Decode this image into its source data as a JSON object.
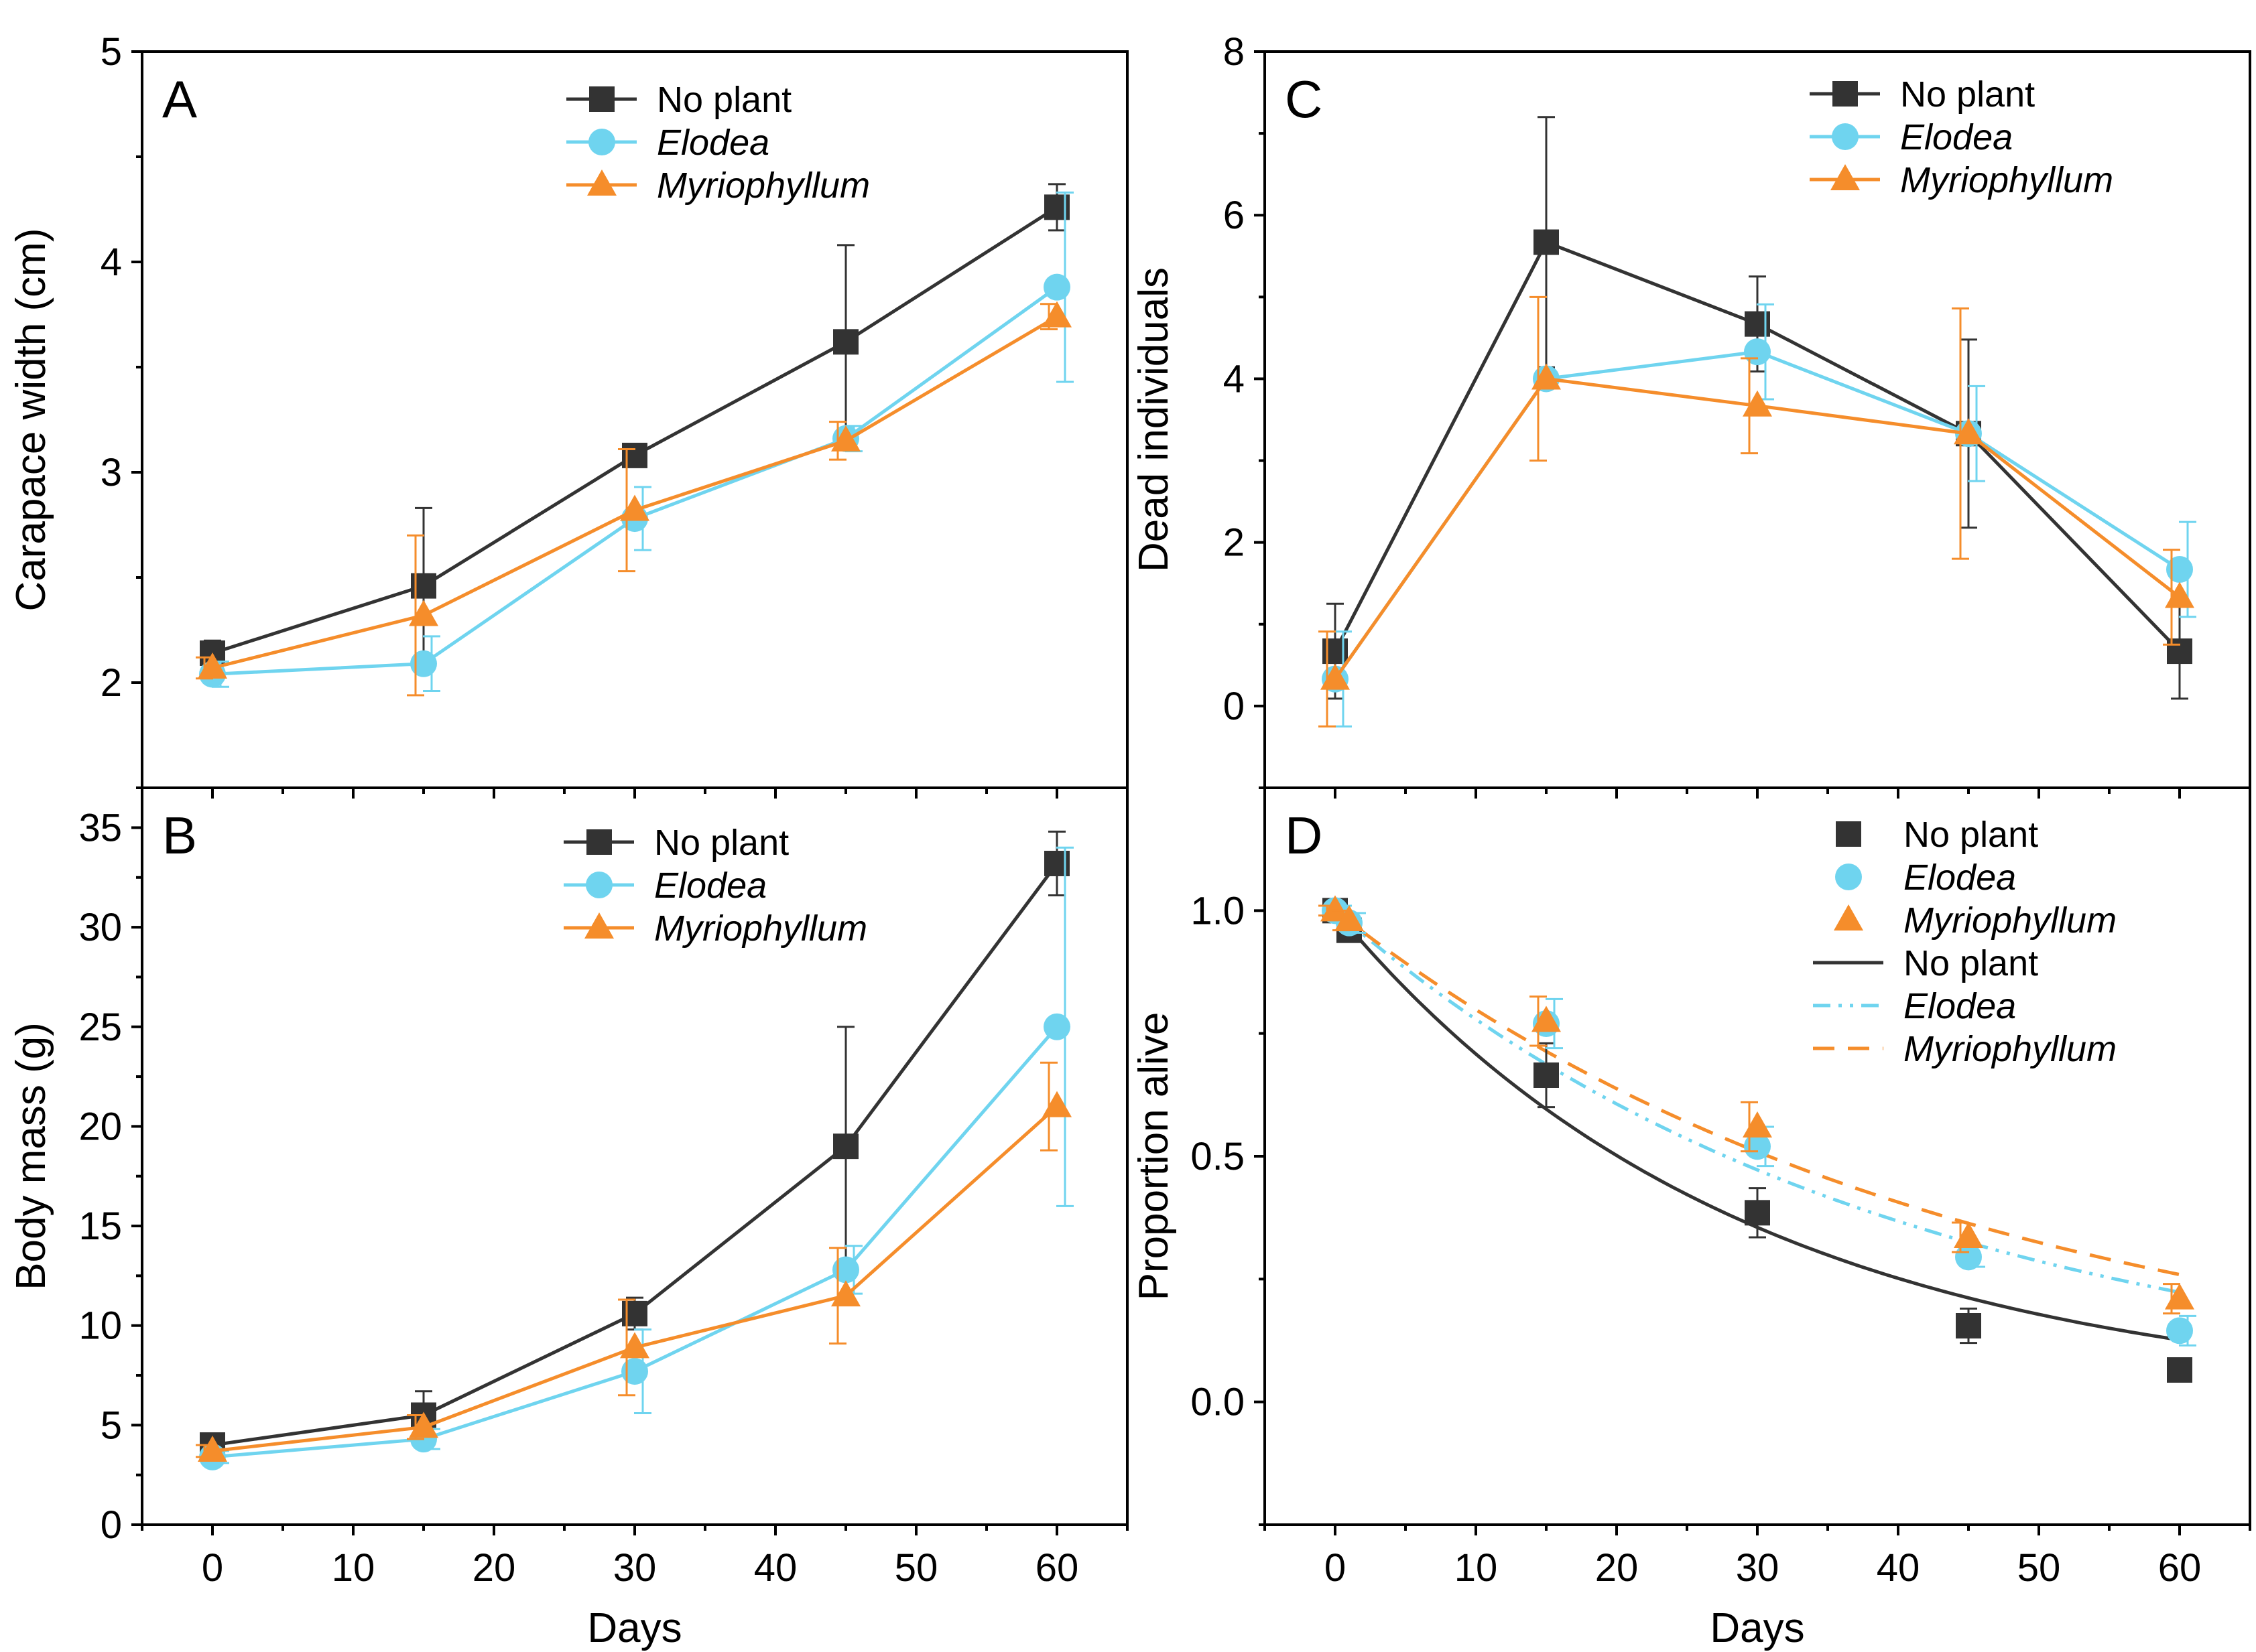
{
  "figure": {
    "shared_x_label": "Days",
    "shared_x_ticks": [
      "0",
      "10",
      "20",
      "30",
      "40",
      "50",
      "60"
    ]
  },
  "colors": {
    "no_plant": "#333333",
    "elodea": "#6fd4ef",
    "myriophyllum": "#f58d2b"
  },
  "chart_data": [
    {
      "panel": "A",
      "type": "line",
      "xlabel": "Days",
      "ylabel": "Carapace width (cm)",
      "xlim": [
        -5,
        65
      ],
      "ylim": [
        1.5,
        5
      ],
      "yticks": [
        2,
        3,
        4,
        5
      ],
      "x": [
        0,
        15,
        30,
        45,
        60
      ],
      "legend_position": "top-center",
      "series": [
        {
          "name": "No plant",
          "italic": false,
          "color": "#333333",
          "marker": "square",
          "values": [
            2.14,
            2.46,
            3.08,
            3.62,
            4.26
          ],
          "err": [
            0.06,
            0.37,
            0.04,
            0.46,
            0.11
          ]
        },
        {
          "name": "Elodea",
          "italic": true,
          "color": "#6fd4ef",
          "marker": "circle",
          "values": [
            2.04,
            2.09,
            2.78,
            3.16,
            3.88
          ],
          "err": [
            0.06,
            0.13,
            0.15,
            0.06,
            0.45
          ]
        },
        {
          "name": "Myriophyllum",
          "italic": true,
          "color": "#f58d2b",
          "marker": "triangle",
          "values": [
            2.07,
            2.32,
            2.82,
            3.15,
            3.74
          ],
          "err": [
            0.05,
            0.38,
            0.29,
            0.09,
            0.06
          ]
        }
      ]
    },
    {
      "panel": "B",
      "type": "line",
      "xlabel": "Days",
      "ylabel": "Body mass (g)",
      "xlim": [
        -5,
        65
      ],
      "ylim": [
        0,
        37
      ],
      "yticks": [
        0,
        5,
        10,
        15,
        20,
        25,
        30,
        35
      ],
      "x": [
        0,
        15,
        30,
        45,
        60
      ],
      "legend_position": "top-center",
      "series": [
        {
          "name": "No plant",
          "italic": false,
          "color": "#333333",
          "marker": "square",
          "values": [
            4.0,
            5.5,
            10.6,
            19.0,
            33.2
          ],
          "err": [
            0.5,
            1.2,
            0.8,
            6.0,
            1.6
          ]
        },
        {
          "name": "Elodea",
          "italic": true,
          "color": "#6fd4ef",
          "marker": "circle",
          "values": [
            3.4,
            4.3,
            7.7,
            12.8,
            25.0
          ],
          "err": [
            0.3,
            0.5,
            2.1,
            1.2,
            9.0
          ]
        },
        {
          "name": "Myriophyllum",
          "italic": true,
          "color": "#f58d2b",
          "marker": "triangle",
          "values": [
            3.7,
            4.9,
            8.9,
            11.5,
            21.0
          ],
          "err": [
            0.3,
            0.6,
            2.4,
            2.4,
            2.2
          ]
        }
      ]
    },
    {
      "panel": "C",
      "type": "line",
      "xlabel": "Days",
      "ylabel": "Dead  individuals",
      "xlim": [
        -5,
        65
      ],
      "ylim": [
        -1,
        8
      ],
      "yticks": [
        0,
        2,
        4,
        6,
        8
      ],
      "x": [
        0,
        15,
        30,
        45,
        60
      ],
      "legend_position": "top-right",
      "series": [
        {
          "name": "No plant",
          "italic": false,
          "color": "#333333",
          "marker": "square",
          "values": [
            0.67,
            5.67,
            4.67,
            3.33,
            0.67
          ],
          "err": [
            0.58,
            1.53,
            0.58,
            1.15,
            0.58
          ]
        },
        {
          "name": "Elodea",
          "italic": true,
          "color": "#6fd4ef",
          "marker": "circle",
          "values": [
            0.33,
            4.0,
            4.33,
            3.33,
            1.67
          ],
          "err": [
            0.58,
            0.0,
            0.58,
            0.58,
            0.58
          ]
        },
        {
          "name": "Myriophyllum",
          "italic": true,
          "color": "#f58d2b",
          "marker": "triangle",
          "values": [
            0.33,
            4.0,
            3.67,
            3.33,
            1.33
          ],
          "err": [
            0.58,
            1.0,
            0.58,
            1.53,
            0.58
          ]
        }
      ]
    },
    {
      "panel": "D",
      "type": "scatter",
      "xlabel": "Days",
      "ylabel": "Proportion alive",
      "xlim": [
        -5,
        65
      ],
      "ylim": [
        -0.25,
        1.25
      ],
      "yticks": [
        0.0,
        0.5,
        1.0
      ],
      "ytick_labels": [
        "0.0",
        "0.5",
        "1.0"
      ],
      "x": [
        0,
        1,
        15,
        30,
        45,
        60
      ],
      "legend_position": "top-right",
      "series": [
        {
          "name": "No plant",
          "italic": false,
          "color": "#333333",
          "marker": "square",
          "values": [
            1.0,
            0.96,
            0.665,
            0.385,
            0.155,
            0.065
          ],
          "err": [
            0.01,
            0.02,
            0.065,
            0.05,
            0.035,
            0.01
          ]
        },
        {
          "name": "Elodea",
          "italic": true,
          "color": "#6fd4ef",
          "marker": "circle",
          "values": [
            1.0,
            0.975,
            0.77,
            0.52,
            0.295,
            0.145
          ],
          "err": [
            0.01,
            0.02,
            0.05,
            0.04,
            0.02,
            0.03
          ]
        },
        {
          "name": "Myriophyllum",
          "italic": true,
          "color": "#f58d2b",
          "marker": "triangle",
          "values": [
            1.0,
            0.98,
            0.775,
            0.56,
            0.335,
            0.21
          ],
          "err": [
            0.01,
            0.02,
            0.05,
            0.05,
            0.03,
            0.03
          ]
        }
      ],
      "fits": [
        {
          "name": "No plant",
          "italic": false,
          "color": "#333333",
          "style": "solid",
          "model": "exponential decay",
          "rate": 0.0345
        },
        {
          "name": "Elodea",
          "italic": true,
          "color": "#6fd4ef",
          "style": "dash-dot-dot",
          "model": "exponential decay",
          "rate": 0.025
        },
        {
          "name": "Myriophyllum",
          "italic": true,
          "color": "#f58d2b",
          "style": "dash",
          "model": "exponential decay",
          "rate": 0.0225
        }
      ]
    }
  ]
}
